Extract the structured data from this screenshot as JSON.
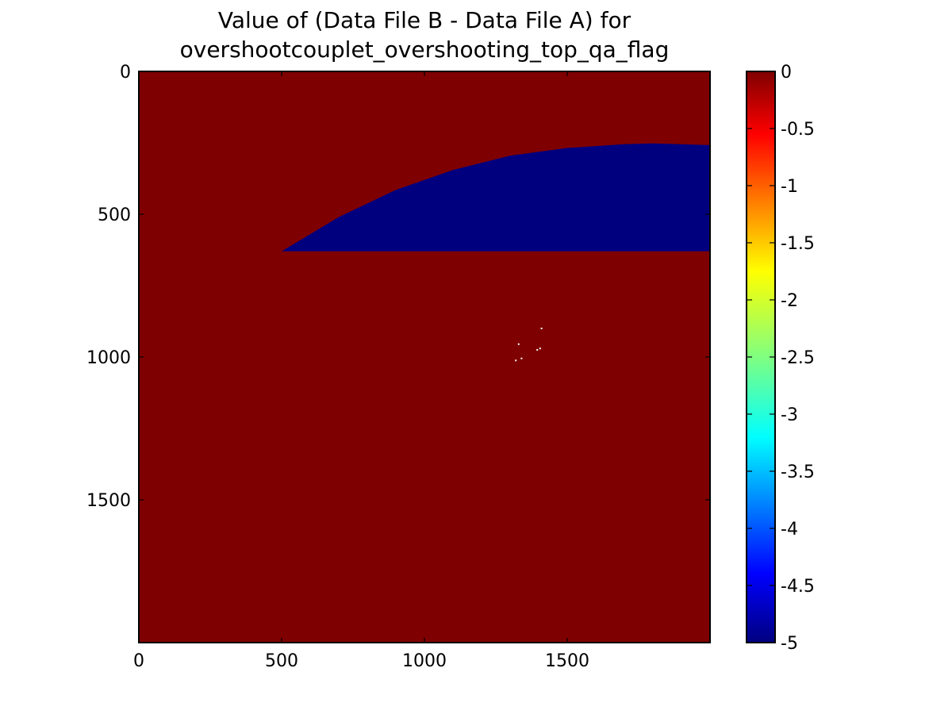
{
  "chart_data": {
    "type": "heatmap",
    "title_lines": [
      "Value of (Data File B - Data File A) for",
      "overshootcouplet_overshooting_top_qa_flag"
    ],
    "xlabel": "",
    "ylabel": "",
    "xlim": [
      0,
      2000
    ],
    "ylim": [
      2000,
      0
    ],
    "y_inverted": true,
    "x_ticks": [
      0,
      500,
      1000,
      1500
    ],
    "y_ticks": [
      0,
      500,
      1000,
      1500
    ],
    "x_tick_labels": [
      "0",
      "500",
      "1000",
      "1500"
    ],
    "y_tick_labels": [
      "0",
      "500",
      "1000",
      "1500"
    ],
    "colormap": "jet",
    "background_value": 0,
    "background_color": "#7f0000",
    "regions": [
      {
        "value": -5,
        "color": "#00007f",
        "description_shape": "arc-bounded region",
        "upper_boundary": [
          [
            500,
            630
          ],
          [
            700,
            510
          ],
          [
            900,
            415
          ],
          [
            1100,
            345
          ],
          [
            1300,
            295
          ],
          [
            1500,
            268
          ],
          [
            1700,
            255
          ],
          [
            1800,
            252
          ],
          [
            2000,
            258
          ]
        ],
        "lower_boundary_y": 630,
        "x_range": [
          500,
          2000
        ]
      }
    ],
    "speckles": [
      {
        "x": 1320,
        "y": 1012,
        "value": 0
      },
      {
        "x": 1340,
        "y": 1005,
        "value": 0
      },
      {
        "x": 1330,
        "y": 955,
        "value": 0
      },
      {
        "x": 1395,
        "y": 975,
        "value": 0
      },
      {
        "x": 1405,
        "y": 970,
        "value": 0
      },
      {
        "x": 1410,
        "y": 900,
        "value": 0
      }
    ],
    "colorbar": {
      "min": -5,
      "max": 0,
      "ticks": [
        0,
        -0.5,
        -1,
        -1.5,
        -2,
        -2.5,
        -3,
        -3.5,
        -4,
        -4.5,
        -5
      ],
      "tick_labels": [
        "0",
        "-0.5",
        "-1",
        "-1.5",
        "-2",
        "-2.5",
        "-3",
        "-3.5",
        "-4",
        "-4.5",
        "-5"
      ],
      "color_stops": [
        {
          "value": 0,
          "color": "#7f0000"
        },
        {
          "value": -0.55,
          "color": "#ff0000"
        },
        {
          "value": -1.75,
          "color": "#ffff00"
        },
        {
          "value": -2.5,
          "color": "#80ff80"
        },
        {
          "value": -3.2,
          "color": "#00ffff"
        },
        {
          "value": -4.4,
          "color": "#0000ff"
        },
        {
          "value": -5,
          "color": "#00007f"
        }
      ]
    }
  }
}
